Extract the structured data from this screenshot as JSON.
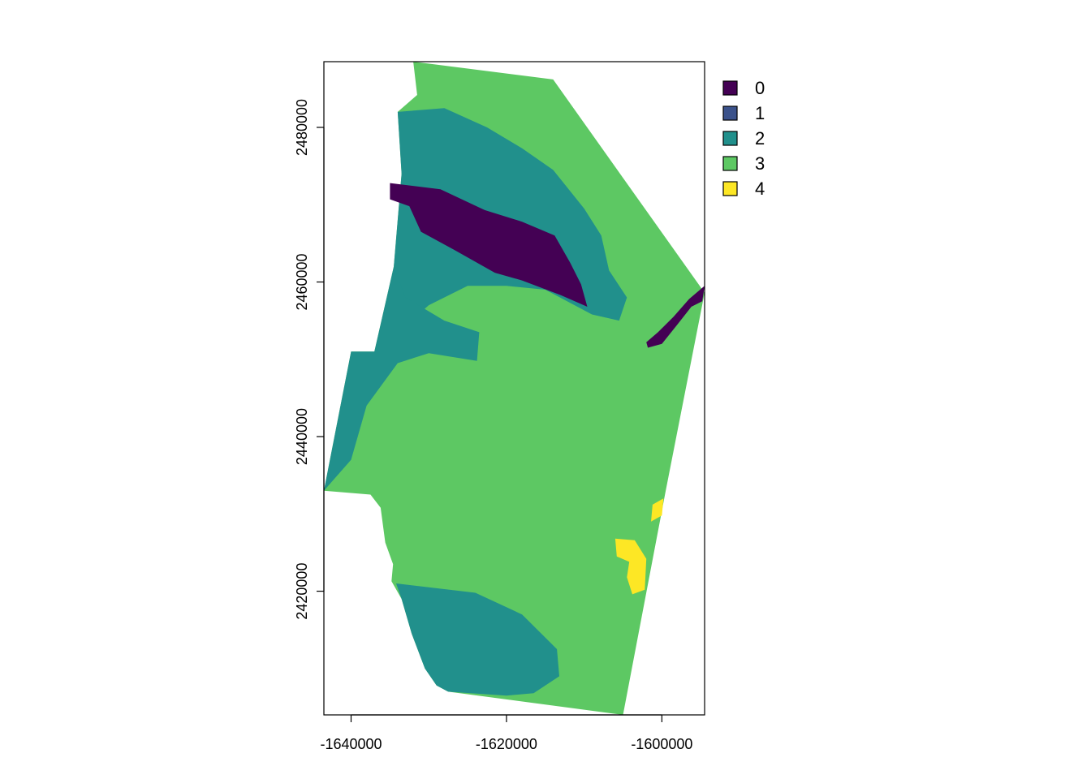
{
  "chart_data": {
    "type": "heatmap",
    "subtype": "categorical raster map",
    "title": "",
    "xlabel": "",
    "ylabel": "",
    "xlim": [
      -1643500,
      -1594500
    ],
    "ylim": [
      2404000,
      2488500
    ],
    "x_ticks": [
      {
        "value": -1640000,
        "label": "-1640000"
      },
      {
        "value": -1620000,
        "label": "-1620000"
      },
      {
        "value": -1600000,
        "label": "-1600000"
      }
    ],
    "y_ticks": [
      {
        "value": 2420000,
        "label": "2420000"
      },
      {
        "value": 2440000,
        "label": "2440000"
      },
      {
        "value": 2460000,
        "label": "2460000"
      },
      {
        "value": 2480000,
        "label": "2480000"
      }
    ],
    "legend": {
      "placement": "top-right, outside plot",
      "entries": [
        {
          "label": "0",
          "color": "#440154"
        },
        {
          "label": "1",
          "color": "#3B528B"
        },
        {
          "label": "2",
          "color": "#21908C"
        },
        {
          "label": "3",
          "color": "#5DC863"
        },
        {
          "label": "4",
          "color": "#FDE725"
        }
      ]
    },
    "dominant_class": "3",
    "regions": [
      {
        "class": "3",
        "description": "background study area",
        "coords": [
          [
            -1632000,
            2488500
          ],
          [
            -1614000,
            2486200
          ],
          [
            -1594500,
            2458600
          ],
          [
            -1599500,
            2433000
          ],
          [
            -1605000,
            2404000
          ],
          [
            -1627500,
            2407000
          ],
          [
            -1629000,
            2407800
          ],
          [
            -1630500,
            2410000
          ],
          [
            -1632200,
            2414500
          ],
          [
            -1633500,
            2419000
          ],
          [
            -1634800,
            2421300
          ],
          [
            -1634600,
            2423500
          ],
          [
            -1635600,
            2426300
          ],
          [
            -1636200,
            2430800
          ],
          [
            -1637500,
            2432500
          ],
          [
            -1643500,
            2433000
          ],
          [
            -1640000,
            2451000
          ],
          [
            -1637000,
            2451000
          ],
          [
            -1634500,
            2462000
          ],
          [
            -1633500,
            2474000
          ],
          [
            -1634000,
            2482000
          ],
          [
            -1631500,
            2484200
          ],
          [
            -1632000,
            2488500
          ]
        ]
      },
      {
        "class": "2",
        "description": "northern band",
        "coords": [
          [
            -1634000,
            2482000
          ],
          [
            -1628000,
            2482500
          ],
          [
            -1622500,
            2480000
          ],
          [
            -1618000,
            2477300
          ],
          [
            -1614000,
            2474500
          ],
          [
            -1610000,
            2469500
          ],
          [
            -1607800,
            2466000
          ],
          [
            -1606800,
            2461500
          ],
          [
            -1604500,
            2458000
          ],
          [
            -1605500,
            2455000
          ],
          [
            -1609000,
            2455800
          ],
          [
            -1615000,
            2459000
          ],
          [
            -1620000,
            2459500
          ],
          [
            -1625000,
            2459500
          ],
          [
            -1630000,
            2457000
          ],
          [
            -1634500,
            2453000
          ],
          [
            -1634500,
            2462000
          ],
          [
            -1633500,
            2474000
          ],
          [
            -1634000,
            2482000
          ]
        ]
      },
      {
        "class": "2",
        "description": "western strip",
        "coords": [
          [
            -1634500,
            2462000
          ],
          [
            -1633000,
            2458000
          ],
          [
            -1628000,
            2455000
          ],
          [
            -1623500,
            2453500
          ],
          [
            -1623800,
            2449800
          ],
          [
            -1630000,
            2450800
          ],
          [
            -1634000,
            2449500
          ],
          [
            -1638000,
            2444000
          ],
          [
            -1640000,
            2437000
          ],
          [
            -1643500,
            2433000
          ],
          [
            -1640000,
            2451000
          ],
          [
            -1637000,
            2451000
          ],
          [
            -1634500,
            2462000
          ]
        ]
      },
      {
        "class": "2",
        "description": "southwest patch",
        "coords": [
          [
            -1634200,
            2421000
          ],
          [
            -1630000,
            2420500
          ],
          [
            -1624000,
            2419800
          ],
          [
            -1618000,
            2417000
          ],
          [
            -1613500,
            2412500
          ],
          [
            -1613200,
            2409000
          ],
          [
            -1616500,
            2406800
          ],
          [
            -1620000,
            2406500
          ],
          [
            -1627500,
            2407000
          ],
          [
            -1629000,
            2407800
          ],
          [
            -1630500,
            2410000
          ],
          [
            -1632200,
            2414500
          ],
          [
            -1633500,
            2419000
          ],
          [
            -1634200,
            2421000
          ]
        ]
      },
      {
        "class": "0",
        "description": "dark block",
        "coords": [
          [
            -1635000,
            2472800
          ],
          [
            -1628500,
            2472000
          ],
          [
            -1622800,
            2469300
          ],
          [
            -1618000,
            2467800
          ],
          [
            -1613800,
            2466000
          ],
          [
            -1611800,
            2462500
          ],
          [
            -1610400,
            2459700
          ],
          [
            -1609600,
            2456800
          ],
          [
            -1613000,
            2458300
          ],
          [
            -1618000,
            2460200
          ],
          [
            -1621500,
            2461200
          ],
          [
            -1626800,
            2464200
          ],
          [
            -1631000,
            2466500
          ],
          [
            -1632500,
            2469800
          ],
          [
            -1635000,
            2470700
          ]
        ]
      },
      {
        "class": "0",
        "description": "river",
        "coords": [
          [
            -1594500,
            2459500
          ],
          [
            -1596500,
            2457800
          ],
          [
            -1598500,
            2455500
          ],
          [
            -1600500,
            2453500
          ],
          [
            -1602000,
            2452200
          ],
          [
            -1601800,
            2451500
          ],
          [
            -1600000,
            2452000
          ],
          [
            -1598000,
            2454500
          ],
          [
            -1596200,
            2456800
          ],
          [
            -1594800,
            2457500
          ]
        ]
      },
      {
        "class": "4",
        "description": "southeast patch",
        "coords": [
          [
            -1606000,
            2426800
          ],
          [
            -1603500,
            2426600
          ],
          [
            -1602000,
            2424200
          ],
          [
            -1602200,
            2420200
          ],
          [
            -1603800,
            2419600
          ],
          [
            -1604500,
            2421800
          ],
          [
            -1604200,
            2423800
          ],
          [
            -1605800,
            2424500
          ]
        ]
      },
      {
        "class": "4",
        "description": "southeast upper patch",
        "coords": [
          [
            -1601200,
            2431200
          ],
          [
            -1599800,
            2432000
          ],
          [
            -1600000,
            2429800
          ],
          [
            -1601400,
            2429000
          ]
        ]
      }
    ]
  }
}
